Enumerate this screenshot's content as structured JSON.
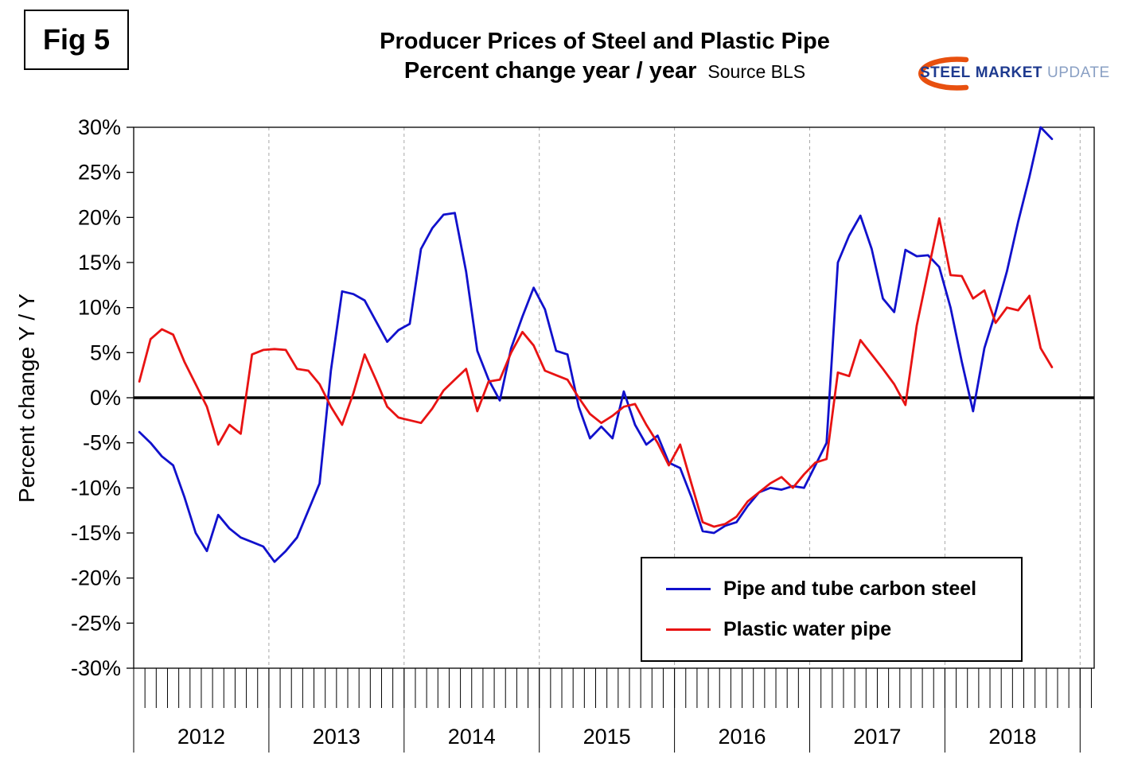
{
  "figure": {
    "label": "Fig 5"
  },
  "header": {
    "title_line1": "Producer Prices of Steel and Plastic Pipe",
    "title_line2": "Percent change year / year",
    "source": "Source BLS"
  },
  "logo": {
    "steel": "STEEL",
    "market": "MARKET",
    "update": "UPDATE",
    "accent_color": "#e8500f",
    "text_color": "#1e3a8f"
  },
  "chart_data": {
    "type": "line",
    "title": "Producer Prices of Steel and Plastic Pipe",
    "subtitle": "Percent change year / year",
    "source": "Source BLS",
    "ylabel": "Percent change Y / Y",
    "ylim": [
      -30,
      30
    ],
    "ytick_step": 5,
    "ytick_format": "percent",
    "x_unit": "month",
    "x_start": "2012-01",
    "x_end": "2018-10",
    "x_years": [
      2012,
      2013,
      2014,
      2015,
      2016,
      2017,
      2018
    ],
    "grid": "vertical-dashed-yearly",
    "zero_line": true,
    "legend_position": "lower right",
    "series": [
      {
        "name": "Pipe and tube carbon steel",
        "color": "#1111cc",
        "values": [
          -3.8,
          -5.0,
          -6.5,
          -7.5,
          -11.0,
          -15.0,
          -17.0,
          -13.0,
          -14.5,
          -15.5,
          -16.0,
          -16.5,
          -18.2,
          -17.0,
          -15.5,
          -12.5,
          -9.5,
          3.0,
          11.8,
          11.5,
          10.8,
          8.5,
          6.2,
          7.5,
          8.2,
          16.5,
          18.8,
          20.3,
          20.5,
          14.0,
          5.2,
          2.0,
          -0.3,
          5.5,
          9.0,
          12.2,
          9.8,
          5.2,
          4.8,
          -1.0,
          -4.5,
          -3.2,
          -4.5,
          0.7,
          -3.0,
          -5.2,
          -4.2,
          -7.2,
          -7.8,
          -11.0,
          -14.8,
          -15.0,
          -14.2,
          -13.8,
          -12.0,
          -10.5,
          -10.0,
          -10.2,
          -9.8,
          -10.0,
          -7.5,
          -5.0,
          15.0,
          18.0,
          20.2,
          16.5,
          11.0,
          9.5,
          16.4,
          15.7,
          15.8,
          14.5,
          10.0,
          4.0,
          -1.5,
          5.5,
          9.5,
          14.0,
          19.5,
          24.5,
          30.0,
          28.7
        ]
      },
      {
        "name": "Plastic water pipe",
        "color": "#e81313",
        "values": [
          1.8,
          6.5,
          7.6,
          7.0,
          4.0,
          1.5,
          -1.0,
          -5.2,
          -3.0,
          -4.0,
          4.8,
          5.3,
          5.4,
          5.3,
          3.2,
          3.0,
          1.5,
          -1.0,
          -3.0,
          0.5,
          4.8,
          2.0,
          -1.0,
          -2.2,
          -2.5,
          -2.8,
          -1.2,
          0.8,
          2.0,
          3.2,
          -1.5,
          1.8,
          2.0,
          5.0,
          7.3,
          5.8,
          3.0,
          2.5,
          2.0,
          0.0,
          -1.8,
          -2.8,
          -2.0,
          -1.0,
          -0.7,
          -3.0,
          -5.0,
          -7.5,
          -5.2,
          -9.5,
          -13.8,
          -14.3,
          -14.0,
          -13.2,
          -11.5,
          -10.5,
          -9.5,
          -8.8,
          -10.0,
          -8.5,
          -7.2,
          -6.8,
          2.8,
          2.4,
          6.4,
          4.8,
          3.2,
          1.5,
          -0.8,
          8.0,
          14.0,
          19.9,
          13.6,
          13.5,
          11.0,
          11.9,
          8.3,
          10.0,
          9.7,
          11.3,
          5.5,
          3.4
        ]
      }
    ]
  }
}
